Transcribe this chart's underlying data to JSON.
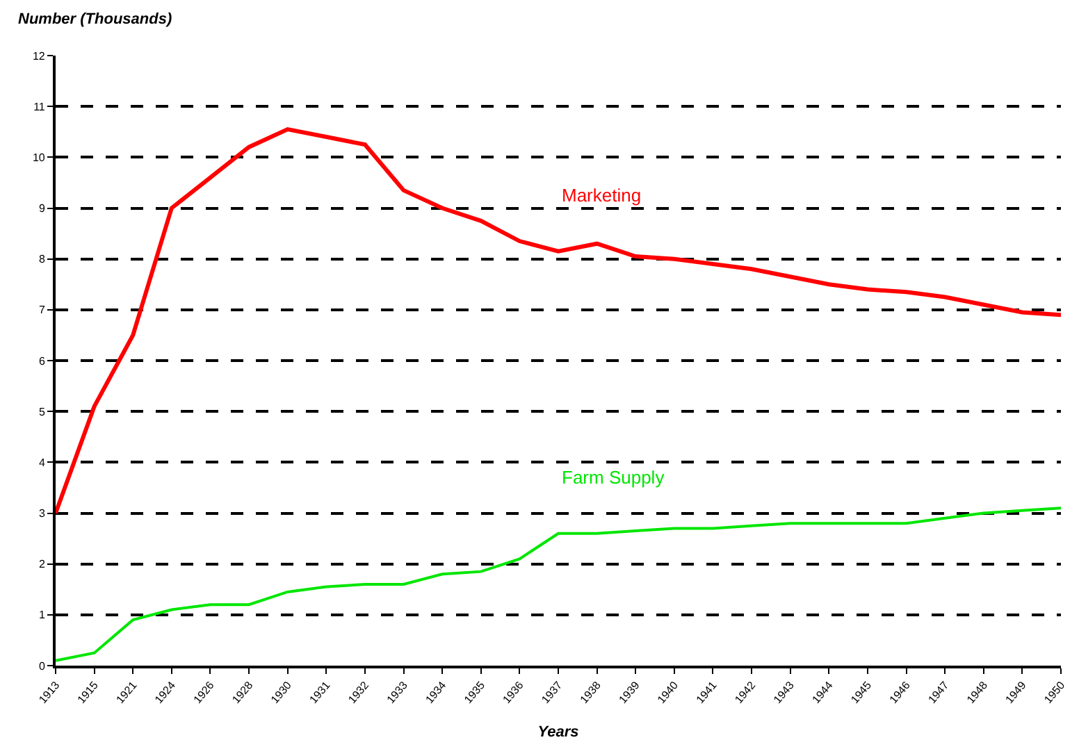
{
  "chart_data": {
    "type": "line",
    "ylabel": "Number (Thousands)",
    "xlabel": "Years",
    "categories": [
      "1913",
      "1915",
      "1921",
      "1924",
      "1926",
      "1928",
      "1930",
      "1931",
      "1932",
      "1933",
      "1934",
      "1935",
      "1936",
      "1937",
      "1938",
      "1939",
      "1940",
      "1941",
      "1942",
      "1943",
      "1944",
      "1945",
      "1946",
      "1947",
      "1948",
      "1949",
      "1950"
    ],
    "series": [
      {
        "name": "Marketing",
        "color": "#ff0000",
        "values": [
          3.0,
          5.1,
          6.5,
          9.0,
          9.6,
          10.2,
          10.55,
          10.4,
          10.25,
          9.35,
          9.0,
          8.75,
          8.35,
          8.15,
          8.3,
          8.05,
          8.0,
          7.9,
          7.8,
          7.65,
          7.5,
          7.4,
          7.35,
          7.25,
          7.1,
          6.95,
          6.9
        ]
      },
      {
        "name": "Farm Supply",
        "color": "#00e600",
        "values": [
          0.1,
          0.25,
          0.9,
          1.1,
          1.2,
          1.2,
          1.45,
          1.55,
          1.6,
          1.6,
          1.8,
          1.85,
          2.1,
          2.6,
          2.6,
          2.65,
          2.7,
          2.7,
          2.75,
          2.8,
          2.8,
          2.8,
          2.8,
          2.9,
          3.0,
          3.05,
          3.1
        ]
      }
    ],
    "ylim": [
      0,
      12
    ],
    "yticks": [
      0,
      1,
      2,
      3,
      4,
      5,
      6,
      7,
      8,
      9,
      10,
      11,
      12
    ],
    "grid": "y",
    "legend": false,
    "marker": "none",
    "line_style": "solid"
  }
}
